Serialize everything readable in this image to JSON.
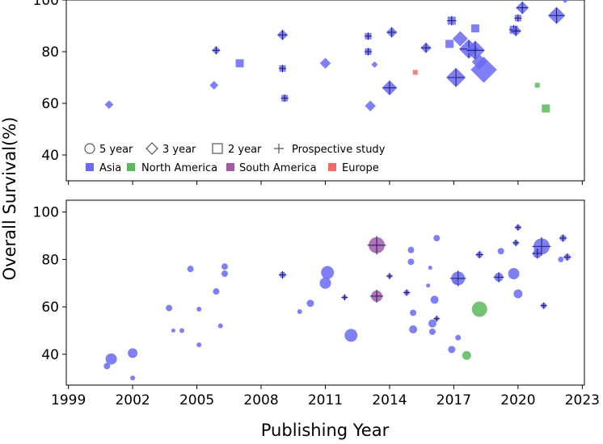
{
  "chart_data": {
    "type": "scatter",
    "xlabel": "Publishing Year",
    "ylabel": "Overall Survival(%)",
    "xlim": [
      1998.9,
      2023.1
    ],
    "x_ticks": [
      "1999",
      "2002",
      "2005",
      "2008",
      "2011",
      "2014",
      "2017",
      "2020",
      "2023"
    ],
    "legend": {
      "shapes": [
        {
          "label": "5 year",
          "shape": "circle"
        },
        {
          "label": "3 year",
          "shape": "diamond"
        },
        {
          "label": "2 year",
          "shape": "square"
        },
        {
          "label": "Prospective study",
          "shape": "plus"
        }
      ],
      "regions": [
        {
          "label": "Asia",
          "color": "#6a6af4"
        },
        {
          "label": "North America",
          "color": "#5cb85c"
        },
        {
          "label": "South America",
          "color": "#a65aa6"
        },
        {
          "label": "Europe",
          "color": "#f46a6a"
        }
      ],
      "placement": "lower-left"
    },
    "panels": [
      {
        "name": "top",
        "ylim": [
          30,
          100
        ],
        "y_ticks": [
          "40",
          "60",
          "80",
          "100"
        ],
        "points": [
          {
            "x": 2000.9,
            "y": 59.5,
            "shape": "diamond",
            "region": "Asia",
            "size": 4,
            "prospective": false
          },
          {
            "x": 2005.8,
            "y": 67,
            "shape": "diamond",
            "region": "Asia",
            "size": 4,
            "prospective": false
          },
          {
            "x": 2005.9,
            "y": 80.5,
            "shape": "diamond",
            "region": "Asia",
            "size": 4,
            "prospective": true
          },
          {
            "x": 2007.0,
            "y": 75.5,
            "shape": "square",
            "region": "Asia",
            "size": 5,
            "prospective": false
          },
          {
            "x": 2009.0,
            "y": 86.5,
            "shape": "diamond",
            "region": "Asia",
            "size": 5,
            "prospective": true
          },
          {
            "x": 2009.0,
            "y": 73.5,
            "shape": "square",
            "region": "Asia",
            "size": 4,
            "prospective": true
          },
          {
            "x": 2009.1,
            "y": 62,
            "shape": "square",
            "region": "Asia",
            "size": 4,
            "prospective": true
          },
          {
            "x": 2011.0,
            "y": 75.5,
            "shape": "diamond",
            "region": "Asia",
            "size": 5,
            "prospective": false
          },
          {
            "x": 2013.0,
            "y": 86,
            "shape": "square",
            "region": "Asia",
            "size": 4,
            "prospective": true
          },
          {
            "x": 2013.0,
            "y": 80,
            "shape": "square",
            "region": "Asia",
            "size": 4,
            "prospective": true
          },
          {
            "x": 2013.1,
            "y": 59,
            "shape": "diamond",
            "region": "Asia",
            "size": 5,
            "prospective": false
          },
          {
            "x": 2013.3,
            "y": 75,
            "shape": "diamond",
            "region": "Asia",
            "size": 3,
            "prospective": false
          },
          {
            "x": 2014.1,
            "y": 87.5,
            "shape": "diamond",
            "region": "Asia",
            "size": 5,
            "prospective": true
          },
          {
            "x": 2014.0,
            "y": 66,
            "shape": "diamond",
            "region": "Asia",
            "size": 7,
            "prospective": true
          },
          {
            "x": 2015.2,
            "y": 72,
            "shape": "square",
            "region": "Europe",
            "size": 3,
            "prospective": false
          },
          {
            "x": 2015.7,
            "y": 81.5,
            "shape": "diamond",
            "region": "Asia",
            "size": 5,
            "prospective": true
          },
          {
            "x": 2016.9,
            "y": 92,
            "shape": "square",
            "region": "Asia",
            "size": 5,
            "prospective": true
          },
          {
            "x": 2016.8,
            "y": 83,
            "shape": "square",
            "region": "Asia",
            "size": 5,
            "prospective": false
          },
          {
            "x": 2017.1,
            "y": 70,
            "shape": "diamond",
            "region": "Asia",
            "size": 9,
            "prospective": true
          },
          {
            "x": 2017.3,
            "y": 85,
            "shape": "diamond",
            "region": "Asia",
            "size": 7,
            "prospective": false
          },
          {
            "x": 2017.7,
            "y": 81,
            "shape": "diamond",
            "region": "Asia",
            "size": 9,
            "prospective": true
          },
          {
            "x": 2018.0,
            "y": 80.5,
            "shape": "diamond",
            "region": "Asia",
            "size": 9,
            "prospective": true
          },
          {
            "x": 2018.0,
            "y": 89,
            "shape": "square",
            "region": "Asia",
            "size": 5,
            "prospective": false
          },
          {
            "x": 2018.2,
            "y": 76,
            "shape": "diamond",
            "region": "Asia",
            "size": 7,
            "prospective": false
          },
          {
            "x": 2018.4,
            "y": 73,
            "shape": "diamond",
            "region": "Asia",
            "size": 12,
            "prospective": false
          },
          {
            "x": 2019.8,
            "y": 88.5,
            "shape": "square",
            "region": "Asia",
            "size": 5,
            "prospective": true
          },
          {
            "x": 2019.9,
            "y": 88,
            "shape": "diamond",
            "region": "Asia",
            "size": 5,
            "prospective": true
          },
          {
            "x": 2020.0,
            "y": 93,
            "shape": "square",
            "region": "Asia",
            "size": 4,
            "prospective": true
          },
          {
            "x": 2020.2,
            "y": 97,
            "shape": "diamond",
            "region": "Asia",
            "size": 6,
            "prospective": true
          },
          {
            "x": 2020.9,
            "y": 67,
            "shape": "square",
            "region": "North America",
            "size": 3,
            "prospective": false
          },
          {
            "x": 2021.3,
            "y": 58,
            "shape": "square",
            "region": "North America",
            "size": 5,
            "prospective": false
          },
          {
            "x": 2021.8,
            "y": 94,
            "shape": "diamond",
            "region": "Asia",
            "size": 8,
            "prospective": true
          },
          {
            "x": 2022.2,
            "y": 100,
            "shape": "diamond",
            "region": "Asia",
            "size": 3,
            "prospective": false
          }
        ]
      },
      {
        "name": "bottom",
        "ylim": [
          27,
          105
        ],
        "y_ticks": [
          "40",
          "60",
          "80",
          "100"
        ],
        "points": [
          {
            "x": 2000.8,
            "y": 35,
            "shape": "circle",
            "region": "Asia",
            "size": 4,
            "prospective": false
          },
          {
            "x": 2001.0,
            "y": 38,
            "shape": "circle",
            "region": "Asia",
            "size": 7,
            "prospective": false
          },
          {
            "x": 2002.0,
            "y": 40.5,
            "shape": "circle",
            "region": "Asia",
            "size": 6,
            "prospective": false
          },
          {
            "x": 2002.0,
            "y": 30,
            "shape": "circle",
            "region": "Asia",
            "size": 3,
            "prospective": false
          },
          {
            "x": 2003.7,
            "y": 59.5,
            "shape": "circle",
            "region": "Asia",
            "size": 4,
            "prospective": false
          },
          {
            "x": 2003.9,
            "y": 50,
            "shape": "circle",
            "region": "Asia",
            "size": 2.5,
            "prospective": false
          },
          {
            "x": 2004.3,
            "y": 50,
            "shape": "circle",
            "region": "Asia",
            "size": 3,
            "prospective": false
          },
          {
            "x": 2004.7,
            "y": 76,
            "shape": "circle",
            "region": "Asia",
            "size": 4,
            "prospective": false
          },
          {
            "x": 2005.1,
            "y": 59,
            "shape": "circle",
            "region": "Asia",
            "size": 3,
            "prospective": false
          },
          {
            "x": 2005.1,
            "y": 44,
            "shape": "circle",
            "region": "Asia",
            "size": 3,
            "prospective": false
          },
          {
            "x": 2005.9,
            "y": 66.5,
            "shape": "circle",
            "region": "Asia",
            "size": 4,
            "prospective": false
          },
          {
            "x": 2006.1,
            "y": 52,
            "shape": "circle",
            "region": "Asia",
            "size": 3,
            "prospective": false
          },
          {
            "x": 2006.3,
            "y": 77,
            "shape": "circle",
            "region": "Asia",
            "size": 4,
            "prospective": false
          },
          {
            "x": 2006.3,
            "y": 74,
            "shape": "circle",
            "region": "Asia",
            "size": 4,
            "prospective": false
          },
          {
            "x": 2009.0,
            "y": 73.5,
            "shape": "circle",
            "region": "Asia",
            "size": 4,
            "prospective": true
          },
          {
            "x": 2009.8,
            "y": 58,
            "shape": "circle",
            "region": "Asia",
            "size": 3,
            "prospective": false
          },
          {
            "x": 2010.3,
            "y": 61.5,
            "shape": "circle",
            "region": "Asia",
            "size": 4.5,
            "prospective": false
          },
          {
            "x": 2011.1,
            "y": 74.5,
            "shape": "circle",
            "region": "Asia",
            "size": 8,
            "prospective": false
          },
          {
            "x": 2011.0,
            "y": 70,
            "shape": "circle",
            "region": "Asia",
            "size": 7,
            "prospective": false
          },
          {
            "x": 2011.9,
            "y": 64,
            "shape": "circle",
            "region": "Asia",
            "size": 3,
            "prospective": true
          },
          {
            "x": 2012.2,
            "y": 48,
            "shape": "circle",
            "region": "Asia",
            "size": 8,
            "prospective": false
          },
          {
            "x": 2013.4,
            "y": 86,
            "shape": "circle",
            "region": "South America",
            "size": 10,
            "prospective": true
          },
          {
            "x": 2013.4,
            "y": 64.5,
            "shape": "circle",
            "region": "South America",
            "size": 7,
            "prospective": true
          },
          {
            "x": 2014.0,
            "y": 73,
            "shape": "circle",
            "region": "Asia",
            "size": 3,
            "prospective": true
          },
          {
            "x": 2014.8,
            "y": 66,
            "shape": "circle",
            "region": "Asia",
            "size": 3.5,
            "prospective": true
          },
          {
            "x": 2015.0,
            "y": 84,
            "shape": "circle",
            "region": "Asia",
            "size": 4,
            "prospective": false
          },
          {
            "x": 2015.0,
            "y": 79,
            "shape": "circle",
            "region": "Asia",
            "size": 4,
            "prospective": false
          },
          {
            "x": 2015.1,
            "y": 57.5,
            "shape": "circle",
            "region": "Asia",
            "size": 4,
            "prospective": false
          },
          {
            "x": 2015.1,
            "y": 50.5,
            "shape": "circle",
            "region": "Asia",
            "size": 5,
            "prospective": false
          },
          {
            "x": 2015.9,
            "y": 76.5,
            "shape": "circle",
            "region": "Asia",
            "size": 2.5,
            "prospective": false
          },
          {
            "x": 2015.8,
            "y": 69,
            "shape": "circle",
            "region": "Asia",
            "size": 2.5,
            "prospective": false
          },
          {
            "x": 2016.2,
            "y": 89,
            "shape": "circle",
            "region": "Asia",
            "size": 4,
            "prospective": false
          },
          {
            "x": 2016.1,
            "y": 63,
            "shape": "circle",
            "region": "Asia",
            "size": 5,
            "prospective": false
          },
          {
            "x": 2016.2,
            "y": 55,
            "shape": "circle",
            "region": "Asia",
            "size": 3,
            "prospective": true
          },
          {
            "x": 2016.0,
            "y": 53,
            "shape": "circle",
            "region": "Asia",
            "size": 5,
            "prospective": false
          },
          {
            "x": 2016.0,
            "y": 49.5,
            "shape": "circle",
            "region": "Asia",
            "size": 4,
            "prospective": false
          },
          {
            "x": 2016.9,
            "y": 42,
            "shape": "circle",
            "region": "Asia",
            "size": 4.5,
            "prospective": false
          },
          {
            "x": 2017.2,
            "y": 72,
            "shape": "circle",
            "region": "Asia",
            "size": 8.5,
            "prospective": true
          },
          {
            "x": 2017.1,
            "y": 70.5,
            "shape": "circle",
            "region": "Asia",
            "size": 3,
            "prospective": false
          },
          {
            "x": 2017.2,
            "y": 47,
            "shape": "circle",
            "region": "Asia",
            "size": 3.5,
            "prospective": false
          },
          {
            "x": 2017.6,
            "y": 39.5,
            "shape": "circle",
            "region": "North America",
            "size": 5.5,
            "prospective": false
          },
          {
            "x": 2018.2,
            "y": 59,
            "shape": "circle",
            "region": "North America",
            "size": 9.5,
            "prospective": false
          },
          {
            "x": 2018.2,
            "y": 82,
            "shape": "circle",
            "region": "Asia",
            "size": 4,
            "prospective": true
          },
          {
            "x": 2019.1,
            "y": 72.5,
            "shape": "circle",
            "region": "Asia",
            "size": 5.5,
            "prospective": true
          },
          {
            "x": 2019.2,
            "y": 83.5,
            "shape": "circle",
            "region": "Asia",
            "size": 4,
            "prospective": false
          },
          {
            "x": 2019.8,
            "y": 74,
            "shape": "circle",
            "region": "Asia",
            "size": 7,
            "prospective": false
          },
          {
            "x": 2019.9,
            "y": 87,
            "shape": "circle",
            "region": "Asia",
            "size": 3.5,
            "prospective": true
          },
          {
            "x": 2020.0,
            "y": 93.5,
            "shape": "circle",
            "region": "Asia",
            "size": 3.5,
            "prospective": true
          },
          {
            "x": 2020.0,
            "y": 65.5,
            "shape": "circle",
            "region": "Asia",
            "size": 5.5,
            "prospective": false
          },
          {
            "x": 2021.1,
            "y": 85.5,
            "shape": "circle",
            "region": "Asia",
            "size": 10,
            "prospective": true
          },
          {
            "x": 2020.9,
            "y": 82.5,
            "shape": "circle",
            "region": "Asia",
            "size": 5.5,
            "prospective": true
          },
          {
            "x": 2021.2,
            "y": 60.5,
            "shape": "circle",
            "region": "Asia",
            "size": 3.5,
            "prospective": true
          },
          {
            "x": 2022.1,
            "y": 89,
            "shape": "circle",
            "region": "Asia",
            "size": 4,
            "prospective": true
          },
          {
            "x": 2022.0,
            "y": 80,
            "shape": "circle",
            "region": "Asia",
            "size": 3.5,
            "prospective": false
          },
          {
            "x": 2022.3,
            "y": 81,
            "shape": "circle",
            "region": "Asia",
            "size": 4,
            "prospective": true
          }
        ]
      }
    ]
  }
}
